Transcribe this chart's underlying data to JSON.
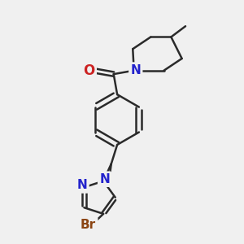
{
  "bg_color": "#f0f0f0",
  "bond_color": "#2a2a2a",
  "bond_width": 1.8,
  "N_color": "#2222cc",
  "O_color": "#cc2222",
  "Br_color": "#8b4513",
  "font_size": 11,
  "fig_bg": "#f0f0f0",
  "xlim": [
    0,
    10
  ],
  "ylim": [
    0,
    10
  ]
}
